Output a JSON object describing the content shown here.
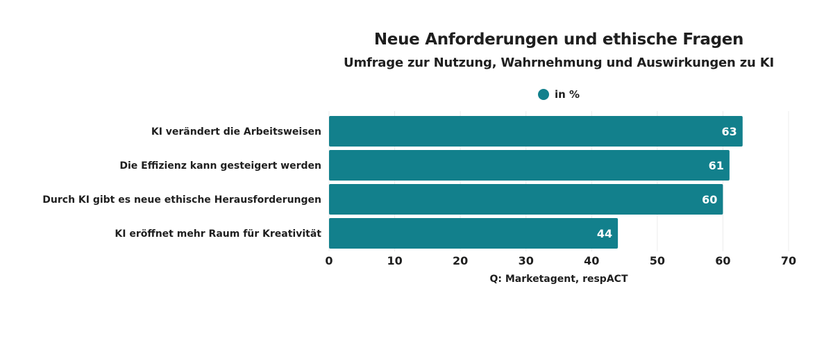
{
  "chart_data": {
    "type": "bar",
    "orientation": "horizontal",
    "title": "Neue Anforderungen und ethische Fragen",
    "subtitle": "Umfrage zur Nutzung, Wahrnehmung und Auswirkungen zu KI",
    "categories": [
      "KI verändert die Arbeitsweisen",
      "Die Effizienz kann gesteigert werden",
      "Durch KI gibt es neue ethische Herausforderungen",
      "KI eröffnet mehr Raum für Kreativität"
    ],
    "series": [
      {
        "name": "in %",
        "values": [
          63,
          61,
          60,
          44
        ]
      }
    ],
    "xlim": [
      0,
      70
    ],
    "xticks": [
      "0",
      "10",
      "20",
      "30",
      "40",
      "50",
      "60",
      "70"
    ],
    "grid": true,
    "legend_position": "top-center",
    "bar_color": "#12808c",
    "source": "Q: Marketagent, respACT"
  }
}
